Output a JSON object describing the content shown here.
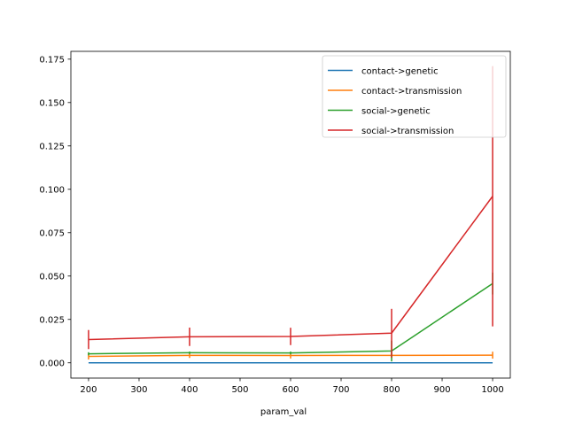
{
  "chart_data": {
    "type": "line",
    "title": "",
    "xlabel": "param_val",
    "ylabel": "",
    "x": [
      200,
      400,
      600,
      800,
      1000
    ],
    "xlim": [
      165,
      1035
    ],
    "ylim": [
      -0.0088,
      0.1795
    ],
    "xticks": [
      "200",
      "300",
      "400",
      "500",
      "600",
      "700",
      "800",
      "900",
      "1000"
    ],
    "yticks": [
      "0.000",
      "0.025",
      "0.050",
      "0.075",
      "0.100",
      "0.125",
      "0.150",
      "0.175"
    ],
    "grid": false,
    "legend_position": "upper right",
    "series": [
      {
        "name": "contact->genetic",
        "color": "#1f77b4",
        "values": [
          0.0,
          0.0,
          0.0,
          0.0,
          0.0
        ],
        "errors": [
          0.0,
          0.0,
          0.0,
          0.0,
          0.0
        ]
      },
      {
        "name": "contact->transmission",
        "color": "#ff7f0e",
        "values": [
          0.0037,
          0.0043,
          0.0042,
          0.0043,
          0.0044
        ],
        "errors": [
          0.0018,
          0.0015,
          0.0017,
          0.0016,
          0.002
        ]
      },
      {
        "name": "social->genetic",
        "color": "#2ca02c",
        "values": [
          0.0052,
          0.0058,
          0.0057,
          0.0068,
          0.0457
        ],
        "errors": [
          0.0009,
          0.0007,
          0.0008,
          0.006,
          0.0063
        ]
      },
      {
        "name": "social->transmission",
        "color": "#d62728",
        "values": [
          0.0134,
          0.015,
          0.0152,
          0.0171,
          0.096
        ],
        "errors": [
          0.0055,
          0.0053,
          0.005,
          0.014,
          0.075
        ]
      }
    ]
  }
}
